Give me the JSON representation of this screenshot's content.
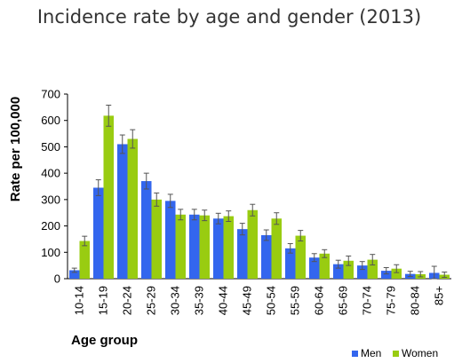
{
  "chart_data": {
    "type": "bar",
    "title": "Incidence rate by age and gender (2013)",
    "xlabel": "Age group",
    "ylabel": "Rate per 100,000",
    "ylim": [
      0,
      700
    ],
    "yticks": [
      0,
      100,
      200,
      300,
      400,
      500,
      600,
      700
    ],
    "grid": false,
    "legend_position": "bottom-right",
    "categories": [
      "10-14",
      "15-19",
      "20-24",
      "25-29",
      "30-34",
      "35-39",
      "40-44",
      "45-49",
      "50-54",
      "55-59",
      "60-64",
      "65-69",
      "70-74",
      "75-79",
      "80-84",
      "85+"
    ],
    "series": [
      {
        "name": "Men",
        "color": "#3366ee",
        "values": [
          32,
          345,
          510,
          370,
          295,
          243,
          228,
          188,
          165,
          115,
          80,
          55,
          50,
          30,
          18,
          22
        ],
        "err": [
          8,
          30,
          35,
          30,
          25,
          20,
          20,
          22,
          20,
          18,
          15,
          15,
          15,
          12,
          10,
          25
        ]
      },
      {
        "name": "Women",
        "color": "#99cc11",
        "values": [
          143,
          618,
          530,
          300,
          243,
          240,
          237,
          260,
          228,
          163,
          95,
          68,
          72,
          38,
          17,
          15
        ],
        "err": [
          18,
          40,
          35,
          25,
          20,
          20,
          20,
          22,
          22,
          20,
          15,
          18,
          20,
          15,
          10,
          10
        ]
      }
    ]
  }
}
